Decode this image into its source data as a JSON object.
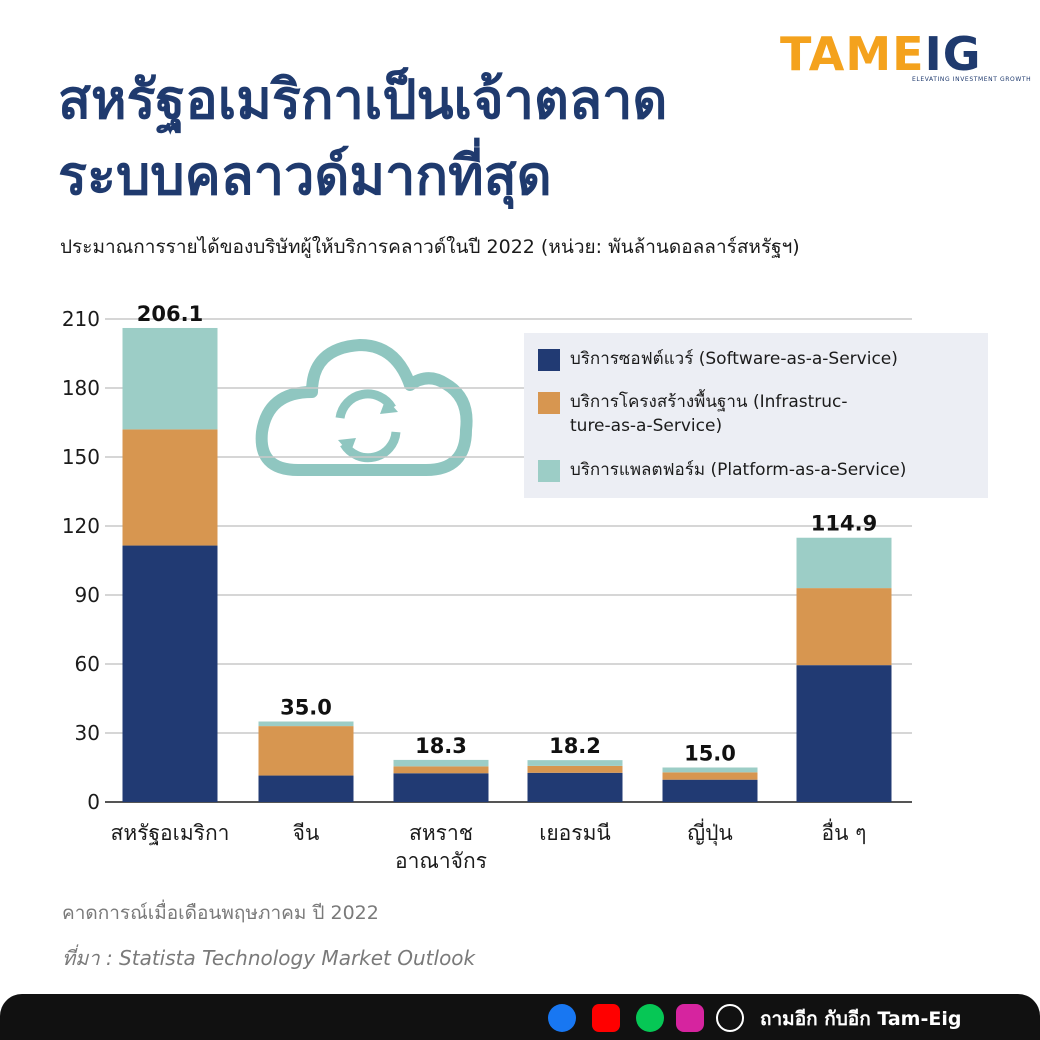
{
  "header": {
    "title_line1": "สหรัฐอเมริกาเป็นเจ้าตลาด",
    "title_line2": "ระบบคลาวด์มากที่สุด",
    "subtitle": "ประมาณการรายได้ของบริษัทผู้ให้บริการคลาวด์ในปี 2022 (หน่วย: พันล้านดอลลาร์สหรัฐฯ)"
  },
  "logo": {
    "text_a": "TAME",
    "text_b": "IG",
    "tagline": "ELEVATING INVESTMENT GROWTH"
  },
  "chart_data": {
    "type": "bar",
    "stacked": true,
    "categories": [
      "สหรัฐอเมริกา",
      "จีน",
      "สหราช|อาณาจักร",
      "เยอรมนี",
      "ญี่ปุ่น",
      "อื่น ๆ"
    ],
    "series": [
      {
        "name": "บริการซอฟต์แวร์ (Software-as-a-Service)",
        "color": "#213a73",
        "values": [
          111.5,
          11.5,
          12.5,
          12.7,
          9.7,
          59.5
        ]
      },
      {
        "name": "บริการโครงสร้างพื้นฐาน (Infrastruc-ture-as-a-Service)",
        "color": "#d79650",
        "values": [
          50.5,
          21.5,
          3.0,
          3.0,
          3.2,
          33.5
        ]
      },
      {
        "name": "บริการแพลตฟอร์ม (Platform-as-a-Service)",
        "color": "#9ccdc6",
        "values": [
          44.1,
          2.0,
          2.8,
          2.5,
          2.1,
          21.9
        ]
      }
    ],
    "totals": [
      "206.1",
      "35.0",
      "18.3",
      "18.2",
      "15.0",
      "114.9"
    ],
    "yticks": [
      0,
      30,
      60,
      90,
      120,
      150,
      180,
      210
    ],
    "ylim": [
      0,
      210
    ],
    "grid": true,
    "legend_position": "top-right",
    "legend": [
      "บริการซอฟต์แวร์ (Software-as-a-Service)",
      "บริการโครงสร้างพื้นฐาน (Infrastruc-",
      "ture-as-a-Service)",
      "บริการแพลตฟอร์ม (Platform-as-a-Service)"
    ]
  },
  "notes": {
    "forecast": "คาดการณ์เมื่อเดือนพฤษภาคม ปี 2022",
    "source": "ที่มา : Statista Technology Market Outlook"
  },
  "footer": {
    "channel": "ถามอีก กับอีก Tam-Eig"
  },
  "colors": {
    "title": "#1f3a6e",
    "accent": "#f4a21d",
    "cloud": "#8fc6c0"
  }
}
